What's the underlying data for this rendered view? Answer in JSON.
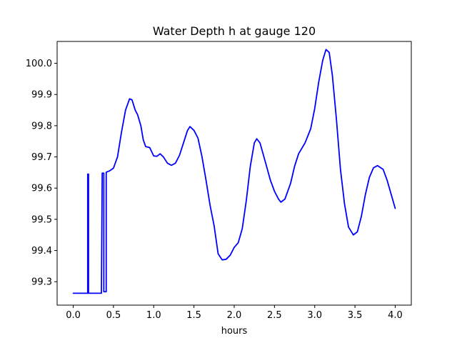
{
  "chart_data": {
    "type": "line",
    "title": "Water Depth h at gauge 120",
    "xlabel": "hours",
    "ylabel": "",
    "xlim": [
      -0.2,
      4.2
    ],
    "ylim": [
      99.225,
      100.07
    ],
    "xticks": [
      0.0,
      0.5,
      1.0,
      1.5,
      2.0,
      2.5,
      3.0,
      3.5,
      4.0
    ],
    "xtick_labels": [
      "0.0",
      "0.5",
      "1.0",
      "1.5",
      "2.0",
      "2.5",
      "3.0",
      "3.5",
      "4.0"
    ],
    "yticks": [
      99.3,
      99.4,
      99.5,
      99.6,
      99.7,
      99.8,
      99.9,
      100.0
    ],
    "ytick_labels": [
      "99.3",
      "99.4",
      "99.5",
      "99.6",
      "99.7",
      "99.8",
      "99.9",
      "100.0"
    ],
    "grid": false,
    "series": [
      {
        "name": "",
        "color": "#0000ff",
        "points": [
          [
            0.0,
            99.263
          ],
          [
            0.18,
            99.263
          ],
          [
            0.18,
            99.645
          ],
          [
            0.19,
            99.645
          ],
          [
            0.19,
            99.263
          ],
          [
            0.35,
            99.263
          ],
          [
            0.36,
            99.648
          ],
          [
            0.38,
            99.648
          ],
          [
            0.38,
            99.268
          ],
          [
            0.41,
            99.268
          ],
          [
            0.41,
            99.651
          ],
          [
            0.45,
            99.655
          ],
          [
            0.5,
            99.664
          ],
          [
            0.55,
            99.7
          ],
          [
            0.6,
            99.78
          ],
          [
            0.65,
            99.85
          ],
          [
            0.7,
            99.886
          ],
          [
            0.73,
            99.883
          ],
          [
            0.77,
            99.85
          ],
          [
            0.8,
            99.835
          ],
          [
            0.84,
            99.8
          ],
          [
            0.87,
            99.755
          ],
          [
            0.9,
            99.733
          ],
          [
            0.95,
            99.73
          ],
          [
            1.0,
            99.703
          ],
          [
            1.04,
            99.702
          ],
          [
            1.08,
            99.71
          ],
          [
            1.12,
            99.7
          ],
          [
            1.17,
            99.68
          ],
          [
            1.22,
            99.673
          ],
          [
            1.27,
            99.68
          ],
          [
            1.32,
            99.705
          ],
          [
            1.37,
            99.745
          ],
          [
            1.42,
            99.785
          ],
          [
            1.45,
            99.797
          ],
          [
            1.5,
            99.785
          ],
          [
            1.55,
            99.76
          ],
          [
            1.6,
            99.7
          ],
          [
            1.65,
            99.625
          ],
          [
            1.7,
            99.545
          ],
          [
            1.75,
            99.48
          ],
          [
            1.8,
            99.39
          ],
          [
            1.85,
            99.37
          ],
          [
            1.9,
            99.372
          ],
          [
            1.95,
            99.385
          ],
          [
            2.0,
            99.41
          ],
          [
            2.05,
            99.425
          ],
          [
            2.1,
            99.47
          ],
          [
            2.15,
            99.56
          ],
          [
            2.2,
            99.67
          ],
          [
            2.25,
            99.745
          ],
          [
            2.28,
            99.758
          ],
          [
            2.32,
            99.745
          ],
          [
            2.38,
            99.69
          ],
          [
            2.45,
            99.625
          ],
          [
            2.5,
            99.59
          ],
          [
            2.55,
            99.565
          ],
          [
            2.58,
            99.555
          ],
          [
            2.63,
            99.565
          ],
          [
            2.7,
            99.615
          ],
          [
            2.75,
            99.67
          ],
          [
            2.8,
            99.71
          ],
          [
            2.88,
            99.745
          ],
          [
            2.95,
            99.79
          ],
          [
            3.0,
            99.855
          ],
          [
            3.05,
            99.94
          ],
          [
            3.1,
            100.01
          ],
          [
            3.14,
            100.044
          ],
          [
            3.18,
            100.035
          ],
          [
            3.22,
            99.96
          ],
          [
            3.27,
            99.82
          ],
          [
            3.32,
            99.66
          ],
          [
            3.37,
            99.55
          ],
          [
            3.42,
            99.475
          ],
          [
            3.48,
            99.45
          ],
          [
            3.53,
            99.46
          ],
          [
            3.58,
            99.51
          ],
          [
            3.63,
            99.58
          ],
          [
            3.68,
            99.635
          ],
          [
            3.73,
            99.665
          ],
          [
            3.78,
            99.672
          ],
          [
            3.85,
            99.66
          ],
          [
            3.9,
            99.625
          ],
          [
            3.95,
            99.58
          ],
          [
            4.0,
            99.535
          ]
        ]
      }
    ]
  }
}
